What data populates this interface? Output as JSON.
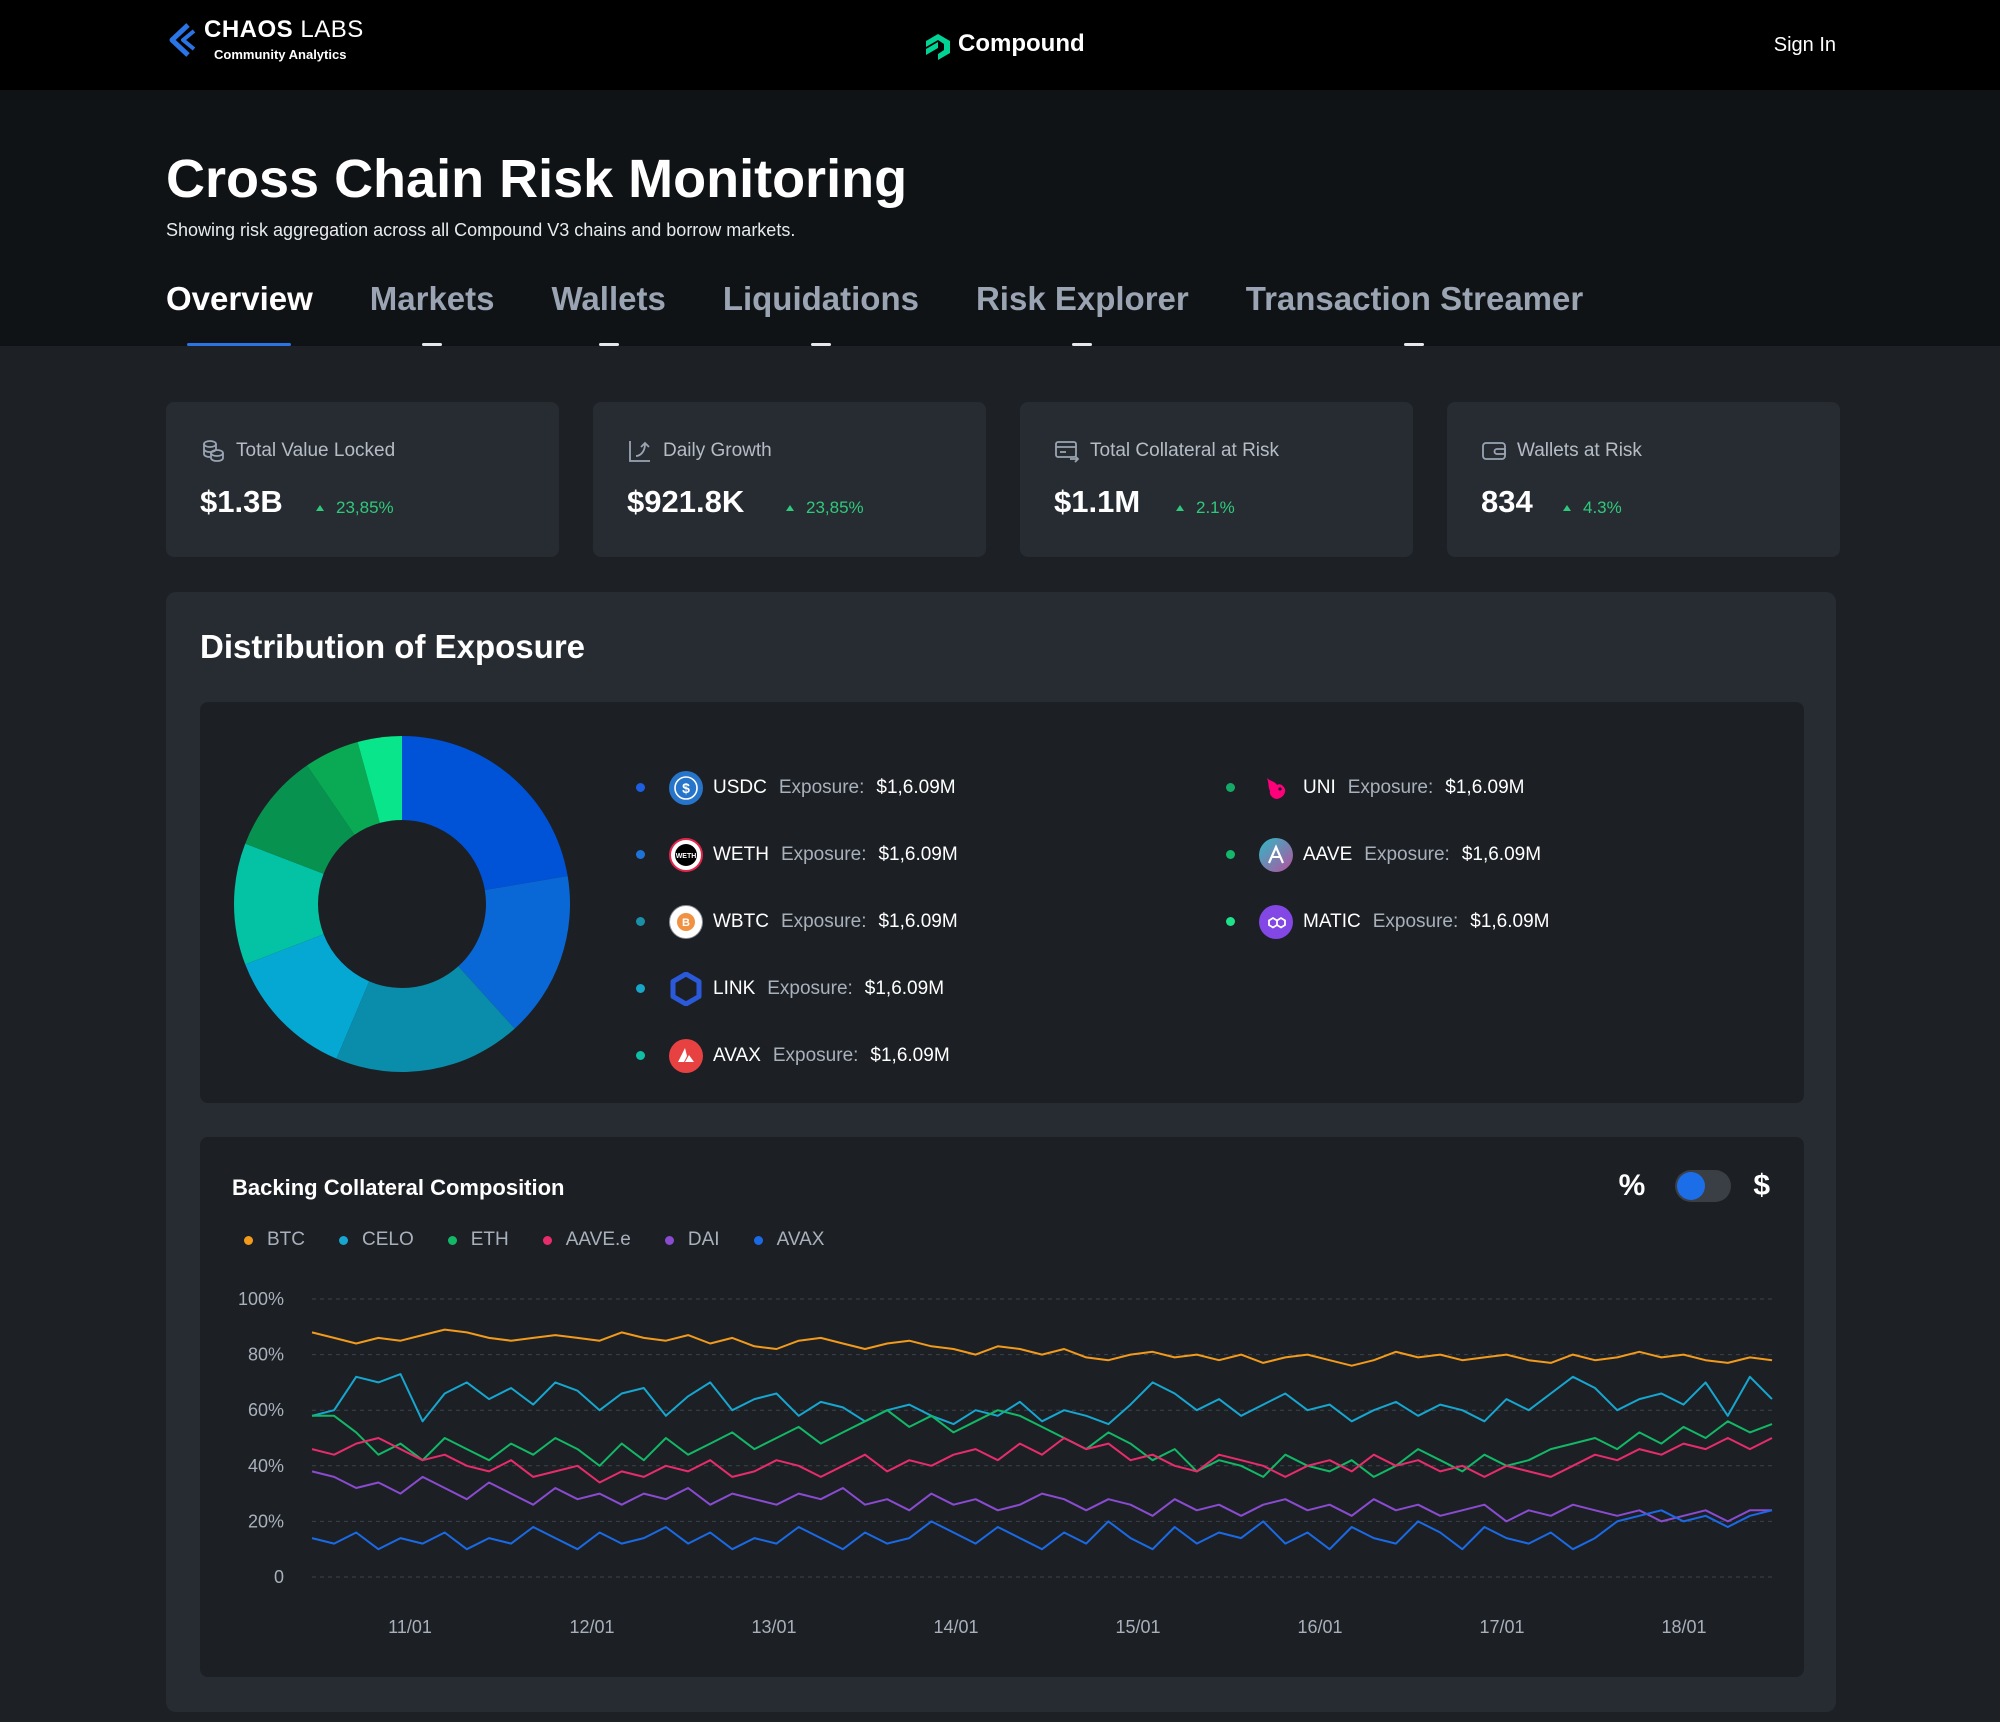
{
  "topbar": {
    "brand_name_bold": "CHAOS",
    "brand_name_light": " LABS",
    "brand_sub": "Community Analytics",
    "protocol": "Compound",
    "sign_in": "Sign In"
  },
  "hero": {
    "title": "Cross Chain Risk Monitoring",
    "subtitle": "Showing risk aggregation across all Compound V3 chains and borrow markets."
  },
  "tabs": [
    {
      "label": "Overview",
      "active": true
    },
    {
      "label": "Markets",
      "active": false
    },
    {
      "label": "Wallets",
      "active": false
    },
    {
      "label": "Liquidations",
      "active": false
    },
    {
      "label": "Risk Explorer",
      "active": false
    },
    {
      "label": "Transaction Streamer",
      "active": false
    }
  ],
  "stats": [
    {
      "icon": "coins-icon",
      "label": "Total Value Locked",
      "value": "$1.3B",
      "change": "23,85%"
    },
    {
      "icon": "growth-icon",
      "label": "Daily Growth",
      "value": "$921.8K",
      "change": "23,85%"
    },
    {
      "icon": "collateral-icon",
      "label": "Total Collateral at Risk",
      "value": "$1.1M",
      "change": "2.1%"
    },
    {
      "icon": "wallet-icon",
      "label": "Wallets at Risk",
      "value": "834",
      "change": "4.3%"
    }
  ],
  "distribution": {
    "title": "Distribution of Exposure",
    "exposure_label": "Exposure:",
    "assets": [
      {
        "symbol": "USDC",
        "amount": "$1,6.09M",
        "dot": "#1d5fe0",
        "icon_bg": "#2775ca",
        "icon": "usdc-icon"
      },
      {
        "symbol": "WETH",
        "amount": "$1,6.09M",
        "dot": "#1e73d8",
        "icon_bg": "#ffffff",
        "icon": "weth-icon"
      },
      {
        "symbol": "WBTC",
        "amount": "$1,6.09M",
        "dot": "#1a8fa8",
        "icon_bg": "#ffffff",
        "icon": "wbtc-icon"
      },
      {
        "symbol": "LINK",
        "amount": "$1,6.09M",
        "dot": "#17a6c7",
        "icon_bg": "#2a5ada",
        "icon": "link-icon"
      },
      {
        "symbol": "AVAX",
        "amount": "$1,6.09M",
        "dot": "#10bfa3",
        "icon_bg": "#e84142",
        "icon": "avax-icon"
      },
      {
        "symbol": "UNI",
        "amount": "$1,6.09M",
        "dot": "#15a968",
        "icon_bg": "#1c2025",
        "icon": "uni-icon"
      },
      {
        "symbol": "AAVE",
        "amount": "$1,6.09M",
        "dot": "#13b86b",
        "icon_bg": "#3ea8c3",
        "icon": "aave-icon"
      },
      {
        "symbol": "MATIC",
        "amount": "$1,6.09M",
        "dot": "#1ee28a",
        "icon_bg": "#8247e5",
        "icon": "matic-icon"
      }
    ]
  },
  "composition": {
    "title": "Backing Collateral Composition",
    "toggle_left": "%",
    "toggle_right": "$",
    "toggle_state": "percent"
  },
  "donut_data": {
    "type": "pie",
    "categories": [
      "USDC",
      "WETH",
      "WBTC",
      "LINK",
      "AVAX",
      "UNI",
      "AAVE",
      "MATIC"
    ],
    "values": [
      21,
      15,
      17,
      12,
      11,
      9,
      5,
      4
    ],
    "colors": [
      "#0052d6",
      "#0a68d6",
      "#0a8cab",
      "#05a7d3",
      "#04c2a4",
      "#07924f",
      "#0aa954",
      "#08e58a"
    ]
  },
  "chart_data": {
    "type": "line",
    "title": "Backing Collateral Composition",
    "xlabel": "",
    "ylabel": "",
    "ylim": [
      0,
      100
    ],
    "yticks": [
      "100%",
      "80%",
      "60%",
      "40%",
      "20%",
      "0"
    ],
    "xticks": [
      "11/01",
      "12/01",
      "13/01",
      "14/01",
      "15/01",
      "16/01",
      "17/01",
      "18/01"
    ],
    "grid": true,
    "legend_position": "top-left",
    "series": [
      {
        "name": "BTC",
        "color": "#f29a1c",
        "values": [
          88,
          86,
          84,
          86,
          85,
          87,
          89,
          88,
          86,
          85,
          86,
          87,
          86,
          85,
          88,
          86,
          85,
          87,
          84,
          86,
          83,
          82,
          85,
          86,
          84,
          82,
          84,
          85,
          83,
          82,
          80,
          83,
          82,
          80,
          82,
          79,
          78,
          80,
          81,
          79,
          80,
          78,
          80,
          77,
          79,
          80,
          78,
          76,
          78,
          81,
          79,
          80,
          78,
          79,
          80,
          78,
          77,
          80,
          78,
          79,
          81,
          79,
          80,
          78,
          77,
          79,
          78
        ]
      },
      {
        "name": "CELO",
        "color": "#16a6cf",
        "values": [
          58,
          60,
          72,
          70,
          73,
          56,
          66,
          70,
          64,
          68,
          62,
          70,
          67,
          60,
          66,
          68,
          58,
          65,
          70,
          60,
          64,
          66,
          58,
          63,
          61,
          56,
          60,
          62,
          58,
          55,
          60,
          58,
          63,
          56,
          60,
          58,
          55,
          62,
          70,
          66,
          60,
          64,
          58,
          62,
          66,
          60,
          62,
          56,
          60,
          63,
          58,
          62,
          60,
          56,
          64,
          60,
          66,
          72,
          68,
          60,
          64,
          66,
          62,
          70,
          58,
          72,
          64
        ]
      },
      {
        "name": "ETH",
        "color": "#12b866",
        "values": [
          58,
          58,
          52,
          44,
          48,
          42,
          50,
          46,
          42,
          48,
          44,
          50,
          46,
          40,
          48,
          42,
          50,
          44,
          48,
          52,
          46,
          50,
          54,
          48,
          52,
          56,
          60,
          54,
          58,
          52,
          56,
          60,
          58,
          54,
          50,
          46,
          52,
          48,
          42,
          46,
          38,
          42,
          40,
          36,
          44,
          40,
          38,
          42,
          36,
          40,
          46,
          42,
          38,
          44,
          40,
          42,
          46,
          48,
          50,
          46,
          52,
          48,
          54,
          50,
          56,
          52,
          55
        ]
      },
      {
        "name": "AAVE.e",
        "color": "#e82c6b",
        "values": [
          46,
          44,
          48,
          50,
          46,
          42,
          44,
          40,
          38,
          42,
          36,
          38,
          40,
          34,
          38,
          36,
          40,
          38,
          42,
          36,
          38,
          42,
          40,
          36,
          40,
          44,
          38,
          42,
          40,
          44,
          46,
          42,
          48,
          44,
          50,
          46,
          48,
          42,
          44,
          40,
          38,
          44,
          42,
          40,
          36,
          40,
          42,
          38,
          44,
          40,
          42,
          38,
          40,
          36,
          40,
          38,
          36,
          40,
          44,
          42,
          46,
          44,
          48,
          46,
          50,
          46,
          50
        ]
      },
      {
        "name": "DAI",
        "color": "#8a4bd1",
        "values": [
          38,
          36,
          32,
          34,
          30,
          36,
          32,
          28,
          34,
          30,
          26,
          32,
          28,
          30,
          26,
          30,
          28,
          32,
          26,
          30,
          28,
          26,
          30,
          28,
          32,
          26,
          28,
          24,
          30,
          26,
          28,
          24,
          26,
          30,
          28,
          24,
          28,
          26,
          22,
          28,
          24,
          26,
          22,
          26,
          28,
          24,
          26,
          22,
          28,
          24,
          26,
          22,
          24,
          26,
          20,
          24,
          22,
          26,
          24,
          22,
          24,
          20,
          22,
          24,
          20,
          24,
          24
        ]
      },
      {
        "name": "AVAX",
        "color": "#1a6ae6",
        "values": [
          14,
          12,
          16,
          10,
          14,
          12,
          16,
          10,
          14,
          12,
          18,
          14,
          10,
          16,
          12,
          14,
          18,
          12,
          16,
          10,
          14,
          12,
          18,
          14,
          10,
          16,
          12,
          14,
          20,
          16,
          12,
          18,
          14,
          10,
          16,
          12,
          20,
          14,
          10,
          18,
          12,
          16,
          14,
          20,
          12,
          16,
          10,
          18,
          14,
          12,
          20,
          16,
          10,
          18,
          14,
          12,
          16,
          10,
          14,
          20,
          22,
          24,
          20,
          22,
          18,
          22,
          24
        ]
      }
    ]
  }
}
